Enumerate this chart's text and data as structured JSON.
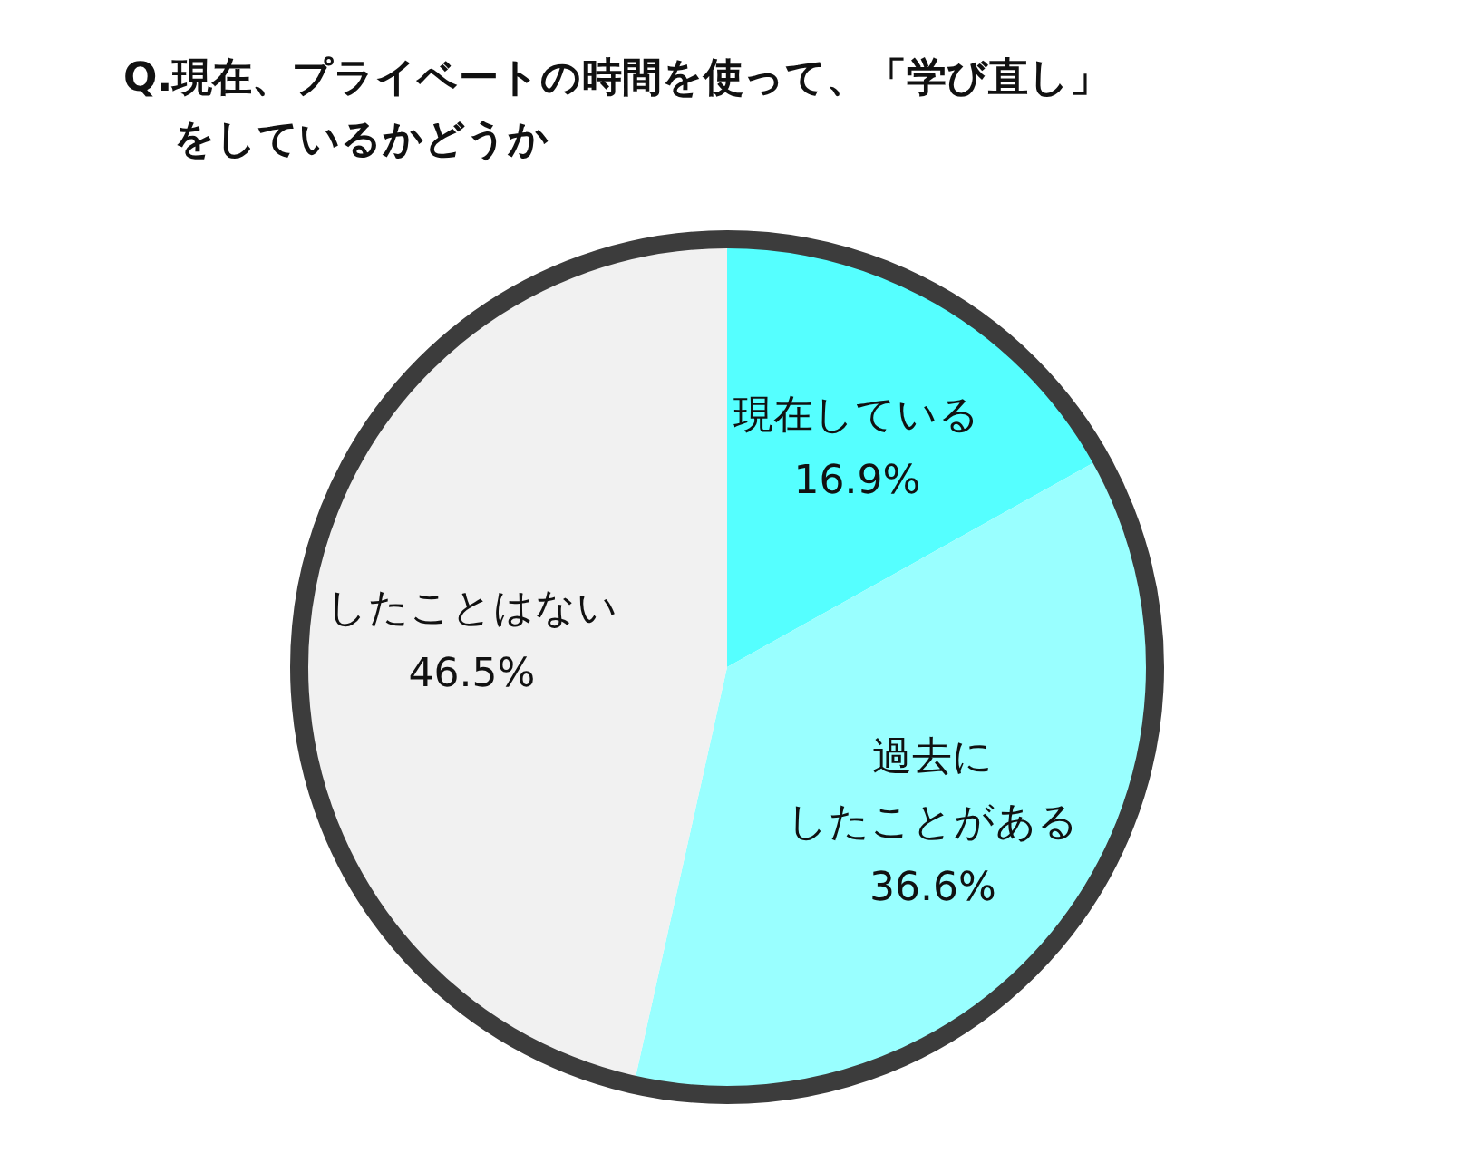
{
  "chart_data": {
    "type": "pie",
    "title": "Q.現在、プライベートの時間を使って、「学び直し」をしているかどうか",
    "categories": [
      "現在している",
      "過去にしたことがある",
      "したことはない"
    ],
    "values": [
      16.9,
      36.6,
      46.5
    ],
    "colors": [
      "#55ffff",
      "#99ffff",
      "#f1f1f1"
    ],
    "value_labels": [
      "16.9%",
      "36.6%",
      "46.5%"
    ]
  }
}
